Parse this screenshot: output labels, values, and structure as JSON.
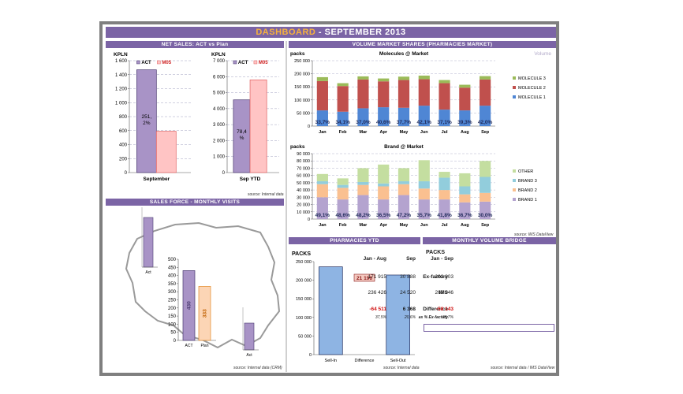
{
  "header": {
    "title_main": "DASHBOARD",
    "title_rest": " - SEPTEMBER 2013"
  },
  "sections": {
    "net_sales": "NET SALES: ACT vs Plan",
    "volume_share": "VOLUME MARKET SHARES (PHARMACIES MARKET)",
    "sales_force": "SALES FORCE - MONTHLY VISITS",
    "pharmacies_ytd": "PHARMACIES YTD",
    "volume_bridge": "MONTHLY VOLUME BRIDGE"
  },
  "sources": {
    "net_sales": "source: Internal data",
    "volume_share": "source: IMS DataView",
    "sales_force": "source: Internal data (CRM)",
    "pharmacies": "source: Internal data",
    "bridge": "source: Internal data / IMS DataView"
  },
  "colors": {
    "act": "#a893c6",
    "plan": "#ffc4c4",
    "mol1": "#4f86d4",
    "mol2": "#c0504d",
    "mol3": "#9bbb59",
    "brand1": "#b4a3cf",
    "brand2": "#fac090",
    "brand3": "#92cddc",
    "other": "#c4dea0",
    "ph_bar": "#8eb4e3",
    "sf_plan": "#fcd5b5"
  },
  "chart_data": [
    {
      "id": "net-sales-sept",
      "type": "bar",
      "unit_label": "KPLN",
      "categories": [
        "September"
      ],
      "series": [
        {
          "name": "ACT",
          "values": [
            1470
          ]
        },
        {
          "name": "M05",
          "values": [
            590
          ]
        }
      ],
      "data_label": "251,\n2%",
      "ylim": [
        0,
        1600
      ],
      "yticks": [
        "0",
        "200",
        "400",
        "600",
        "800",
        "1 000",
        "1 200",
        "1 400",
        "1 600"
      ],
      "ytick_values": [
        0,
        200,
        400,
        600,
        800,
        1000,
        1200,
        1400,
        1600
      ]
    },
    {
      "id": "net-sales-ytd",
      "type": "bar",
      "unit_label": "KPLN",
      "categories": [
        "Sep YTD"
      ],
      "series": [
        {
          "name": "ACT",
          "values": [
            4550
          ]
        },
        {
          "name": "M05",
          "values": [
            5800
          ]
        }
      ],
      "data_label": "78,4\n%",
      "ylim": [
        0,
        7000
      ],
      "yticks": [
        "0",
        "1 000",
        "2 000",
        "3 000",
        "4 000",
        "5 000",
        "6 000",
        "7 000"
      ],
      "ytick_values": [
        0,
        1000,
        2000,
        3000,
        4000,
        5000,
        6000,
        7000
      ]
    },
    {
      "id": "molecules",
      "type": "bar",
      "stacked": true,
      "title": "Molecules @ Market",
      "unit_label": "packs",
      "watermark": "Volume",
      "categories": [
        "Jan",
        "Feb",
        "Mar",
        "Apr",
        "May",
        "Jun",
        "Jul",
        "Aug",
        "Sep"
      ],
      "series": [
        {
          "name": "MOLECULE 1",
          "values": [
            60000,
            55000,
            68000,
            72000,
            70000,
            78000,
            63000,
            60000,
            78000
          ]
        },
        {
          "name": "MOLECULE 2",
          "values": [
            112000,
            98000,
            110000,
            99000,
            106000,
            101000,
            101000,
            87000,
            100000
          ]
        },
        {
          "name": "MOLECULE 3",
          "values": [
            15000,
            11000,
            12000,
            11000,
            13000,
            14000,
            12000,
            11000,
            13000
          ]
        }
      ],
      "data_labels": [
        "33,7%",
        "34,1%",
        "37,0%",
        "40,6%",
        "37,7%",
        "42,1%",
        "37,1%",
        "39,3%",
        "42,0%"
      ],
      "ylim": [
        0,
        250000
      ],
      "yticks": [
        "0",
        "50 000",
        "100 000",
        "150 000",
        "200 000",
        "250 000"
      ],
      "ytick_values": [
        0,
        50000,
        100000,
        150000,
        200000,
        250000
      ]
    },
    {
      "id": "brands",
      "type": "bar",
      "stacked": true,
      "title": "Brand @ Market",
      "unit_label": "packs",
      "categories": [
        "Jan",
        "Feb",
        "Mar",
        "Apr",
        "May",
        "Jun",
        "Jul",
        "Aug",
        "Sep"
      ],
      "series": [
        {
          "name": "BRAND 1",
          "values": [
            30000,
            27000,
            33000,
            27000,
            33000,
            27000,
            27000,
            23000,
            24000
          ]
        },
        {
          "name": "BRAND 2",
          "values": [
            18000,
            16000,
            14000,
            18000,
            15000,
            15000,
            13000,
            11000,
            12000
          ]
        },
        {
          "name": "BRAND 3",
          "values": [
            4000,
            4000,
            4000,
            4000,
            4000,
            10000,
            17000,
            11000,
            22000
          ]
        },
        {
          "name": "OTHER",
          "values": [
            10000,
            9000,
            19000,
            26000,
            18000,
            29000,
            8000,
            18000,
            22000
          ]
        }
      ],
      "data_labels": [
        "49,1%",
        "48,6%",
        "48,2%",
        "36,5%",
        "47,2%",
        "35,7%",
        "41,8%",
        "36,7%",
        "30,0%"
      ],
      "ylim": [
        0,
        90000
      ],
      "yticks": [
        "0",
        "10 000",
        "20 000",
        "30 000",
        "40 000",
        "50 000",
        "60 000",
        "70 000",
        "80 000",
        "90 000"
      ],
      "ytick_values": [
        0,
        10000,
        20000,
        30000,
        40000,
        50000,
        60000,
        70000,
        80000,
        90000
      ]
    },
    {
      "id": "pharmacies",
      "type": "bar",
      "unit_label": "PACKS",
      "categories": [
        "Sell-In",
        "Difference",
        "Sell-Out"
      ],
      "values": [
        236000,
        null,
        214000
      ],
      "difference_label": "21 196",
      "ylim": [
        0,
        250000
      ],
      "yticks": [
        "0",
        "50 000",
        "100 000",
        "150 000",
        "200 000",
        "250 000"
      ],
      "ytick_values": [
        0,
        50000,
        100000,
        150000,
        200000,
        250000
      ]
    },
    {
      "id": "sales-force",
      "type": "bar",
      "categories": [
        "ACT",
        "Plan"
      ],
      "values": [
        430,
        333
      ],
      "data_labels": [
        "430",
        "333"
      ],
      "ylim": [
        0,
        500
      ],
      "yticks": [
        "0",
        "50",
        "100",
        "150",
        "200",
        "250",
        "300",
        "350",
        "400",
        "450",
        "500"
      ],
      "ytick_values": [
        0,
        50,
        100,
        150,
        200,
        250,
        300,
        350,
        400,
        450,
        500
      ],
      "mini_bars": [
        {
          "label": "Act",
          "value": 0.75
        },
        {
          "label": "Act",
          "value": 0.55
        }
      ]
    }
  ],
  "legends": {
    "act": "ACT",
    "plan": "M05"
  },
  "bridge": {
    "packs_label": "PACKS",
    "columns": [
      "Jan - Aug",
      "Sep",
      "Jan - Sep"
    ],
    "rows": [
      {
        "label": "Ex-factory",
        "values": [
          "171 915",
          "30 888",
          "202 803"
        ]
      },
      {
        "label": "IMS",
        "values": [
          "236 426",
          "24 520",
          "260 946"
        ]
      },
      {
        "label": "Difference",
        "values": [
          "-64 511",
          "6 368",
          "-58 143"
        ]
      },
      {
        "label": "as % Ex-factory",
        "values": [
          "37,5%",
          "20,6%",
          "28,7%"
        ]
      }
    ]
  }
}
